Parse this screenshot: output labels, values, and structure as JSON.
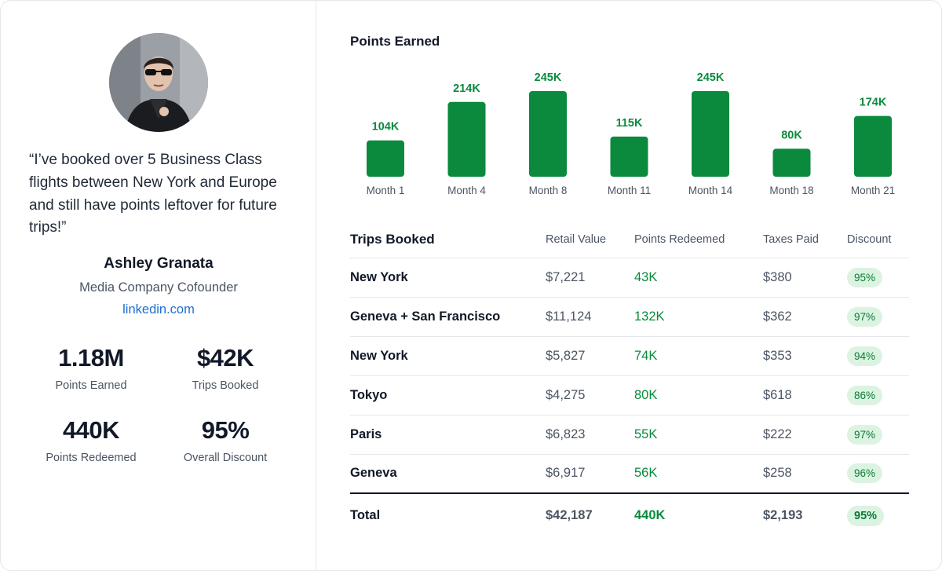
{
  "testimonial": {
    "quote": "“I’ve booked over 5 Business Class flights between New York and Europe and still have points leftover for future trips!”",
    "name": "Ashley Granata",
    "role": "Media Company Cofounder",
    "link": "linkedin.com"
  },
  "stats": [
    {
      "value": "1.18M",
      "label": "Points Earned"
    },
    {
      "value": "$42K",
      "label": "Trips Booked"
    },
    {
      "value": "440K",
      "label": "Points Redeemed"
    },
    {
      "value": "95%",
      "label": "Overall Discount"
    }
  ],
  "chart_data": {
    "type": "bar",
    "title": "Points Earned",
    "categories": [
      "Month 1",
      "Month 4",
      "Month 8",
      "Month 11",
      "Month 14",
      "Month 18",
      "Month 21"
    ],
    "values": [
      104,
      214,
      245,
      115,
      245,
      80,
      174
    ],
    "value_labels": [
      "104K",
      "214K",
      "245K",
      "115K",
      "245K",
      "80K",
      "174K"
    ],
    "unit": "K",
    "color": "#0b8a3e",
    "grid": false
  },
  "trips": {
    "title": "Trips Booked",
    "columns": [
      "Retail Value",
      "Points Redeemed",
      "Taxes Paid",
      "Discount"
    ],
    "rows": [
      {
        "destination": "New York",
        "retail": "$7,221",
        "points": "43K",
        "taxes": "$380",
        "discount": "95%"
      },
      {
        "destination": "Geneva + San Francisco",
        "retail": "$11,124",
        "points": "132K",
        "taxes": "$362",
        "discount": "97%"
      },
      {
        "destination": "New York",
        "retail": "$5,827",
        "points": "74K",
        "taxes": "$353",
        "discount": "94%"
      },
      {
        "destination": "Tokyo",
        "retail": "$4,275",
        "points": "80K",
        "taxes": "$618",
        "discount": "86%"
      },
      {
        "destination": "Paris",
        "retail": "$6,823",
        "points": "55K",
        "taxes": "$222",
        "discount": "97%"
      },
      {
        "destination": "Geneva",
        "retail": "$6,917",
        "points": "56K",
        "taxes": "$258",
        "discount": "96%"
      }
    ],
    "total": {
      "label": "Total",
      "retail": "$42,187",
      "points": "440K",
      "taxes": "$2,193",
      "discount": "95%"
    }
  },
  "colors": {
    "accent_green": "#0b8a3e",
    "pill_bg": "#dcf3e2",
    "link_blue": "#1d6fd0"
  }
}
